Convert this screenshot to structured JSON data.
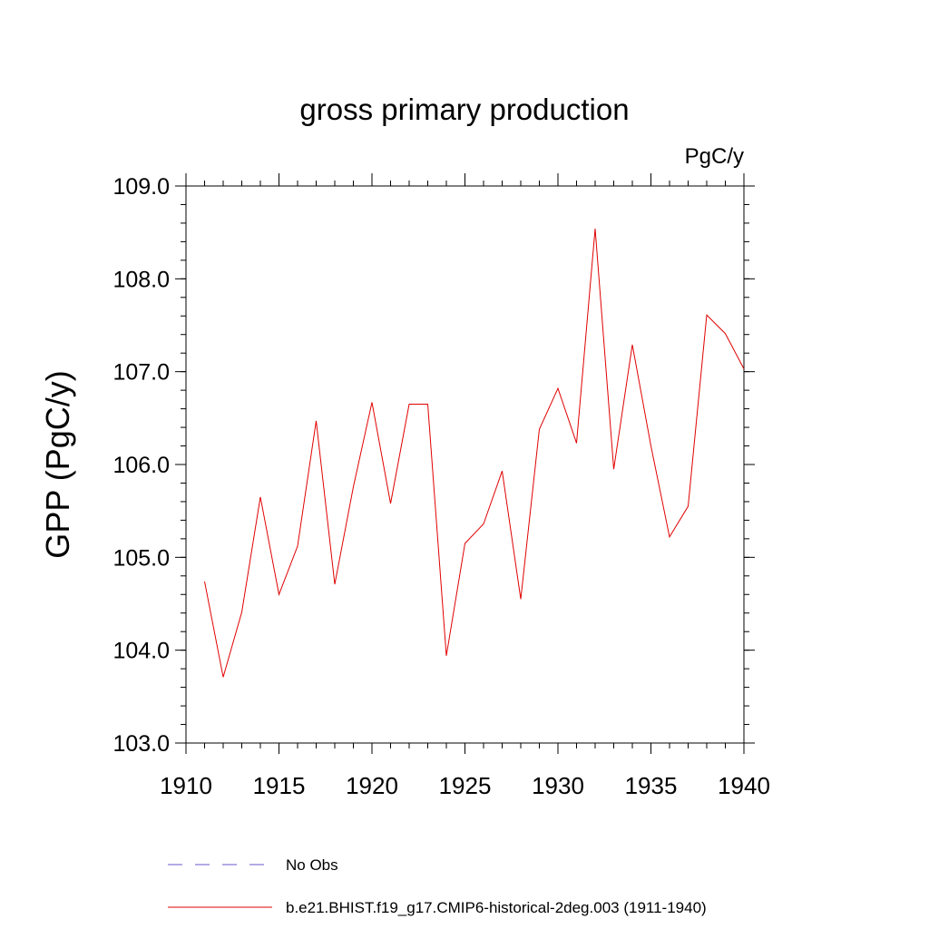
{
  "chart_data": {
    "type": "line",
    "title": "gross primary production",
    "units_label": "PgC/y",
    "xlabel": "",
    "ylabel": "GPP  (PgC/y)",
    "xlim": [
      1910,
      1940
    ],
    "ylim": [
      103.0,
      109.0
    ],
    "x_ticks": [
      1910,
      1915,
      1920,
      1925,
      1930,
      1935,
      1940
    ],
    "x_tick_labels": [
      "1910",
      "1915",
      "1920",
      "1925",
      "1930",
      "1935",
      "1940"
    ],
    "y_ticks": [
      103.0,
      104.0,
      105.0,
      106.0,
      107.0,
      108.0,
      109.0
    ],
    "y_tick_labels": [
      "103.0",
      "104.0",
      "105.0",
      "106.0",
      "107.0",
      "108.0",
      "109.0"
    ],
    "grid": false,
    "legend_position": "bottom",
    "x": [
      1911,
      1912,
      1913,
      1914,
      1915,
      1916,
      1917,
      1918,
      1919,
      1920,
      1921,
      1922,
      1923,
      1924,
      1925,
      1926,
      1927,
      1928,
      1929,
      1930,
      1931,
      1932,
      1933,
      1934,
      1935,
      1936,
      1937,
      1938,
      1939,
      1940
    ],
    "series": [
      {
        "name": "b.e21.BHIST.f19_g17.CMIP6-historical-2deg.003 (1911-1940)",
        "color": "#e00000",
        "style": "solid",
        "values": [
          104.74,
          103.71,
          104.41,
          105.65,
          104.6,
          105.12,
          106.47,
          104.71,
          105.76,
          106.67,
          105.58,
          106.65,
          106.65,
          103.94,
          105.15,
          105.36,
          105.93,
          104.55,
          106.38,
          106.82,
          106.23,
          108.54,
          105.95,
          107.29,
          106.2,
          105.22,
          105.55,
          107.61,
          107.41,
          107.03
        ]
      }
    ],
    "legend": [
      {
        "label": "No Obs",
        "color": "#6a5acd",
        "style": "dashed"
      },
      {
        "label": "b.e21.BHIST.f19_g17.CMIP6-historical-2deg.003 (1911-1940)",
        "color": "#e00000",
        "style": "solid"
      }
    ]
  }
}
